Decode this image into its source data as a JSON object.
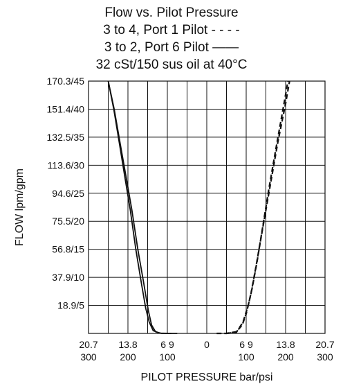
{
  "chart_data": {
    "type": "line",
    "title_lines": [
      "Flow vs. Pilot Pressure",
      "3 to 4, Port 1 Pilot - - - -",
      "3 to 2, Port 6 Pilot ——",
      "32 cSt/150 sus oil at 40°C"
    ],
    "xlabel": "PILOT PRESSURE bar/psi",
    "ylabel": "FLOW lpm/gpm",
    "grid": true,
    "x_unit": "psi",
    "y_unit": "gpm",
    "xlim": [
      -300,
      300
    ],
    "ylim": [
      0,
      45
    ],
    "x_gridlines": [
      -300,
      -250,
      -200,
      -150,
      -100,
      -50,
      0,
      50,
      100,
      150,
      200,
      250,
      300
    ],
    "y_ticks": [
      {
        "value": 5,
        "label": "18.9/5"
      },
      {
        "value": 10,
        "label": "37.9/10"
      },
      {
        "value": 15,
        "label": "56.8/15"
      },
      {
        "value": 20,
        "label": "75.5/20"
      },
      {
        "value": 25,
        "label": "94.6/25"
      },
      {
        "value": 30,
        "label": "113.6/30"
      },
      {
        "value": 35,
        "label": "132.5/35"
      },
      {
        "value": 40,
        "label": "151.4/40"
      },
      {
        "value": 45,
        "label": "170.3/45"
      }
    ],
    "x_ticks": [
      {
        "value": -300,
        "top": "20.7",
        "bottom": "300"
      },
      {
        "value": -200,
        "top": "13.8",
        "bottom": "200"
      },
      {
        "value": -100,
        "top": "6 9",
        "bottom": "100"
      },
      {
        "value": 0,
        "top": "0",
        "bottom": ""
      },
      {
        "value": 100,
        "top": "6 9",
        "bottom": "100"
      },
      {
        "value": 200,
        "top": "13.8",
        "bottom": "200"
      },
      {
        "value": 300,
        "top": "20.7",
        "bottom": "300"
      }
    ],
    "series": [
      {
        "style": "dashed",
        "points": [
          [
            25,
            0
          ],
          [
            50,
            0
          ],
          [
            75,
            0.3
          ],
          [
            90,
            1.5
          ],
          [
            100,
            3.5
          ],
          [
            112,
            7
          ],
          [
            125,
            12
          ],
          [
            140,
            18
          ],
          [
            160,
            26
          ],
          [
            180,
            34
          ],
          [
            200,
            41
          ],
          [
            210,
            45
          ]
        ]
      },
      {
        "style": "dashed",
        "points": [
          [
            50,
            0
          ],
          [
            75,
            0.2
          ],
          [
            92,
            2
          ],
          [
            105,
            5
          ],
          [
            115,
            8
          ],
          [
            128,
            13
          ],
          [
            142,
            19
          ],
          [
            158,
            26
          ],
          [
            178,
            34
          ],
          [
            196,
            41
          ],
          [
            206,
            45
          ]
        ]
      },
      {
        "style": "solid",
        "points": [
          [
            -250,
            45
          ],
          [
            -235,
            40
          ],
          [
            -220,
            34
          ],
          [
            -205,
            28
          ],
          [
            -190,
            22
          ],
          [
            -175,
            15
          ],
          [
            -160,
            9
          ],
          [
            -148,
            4
          ],
          [
            -140,
            1.5
          ],
          [
            -130,
            0.3
          ],
          [
            -115,
            0
          ],
          [
            -75,
            0
          ]
        ]
      },
      {
        "style": "solid",
        "points": [
          [
            -250,
            45
          ],
          [
            -236,
            40
          ],
          [
            -222,
            34
          ],
          [
            -208,
            28
          ],
          [
            -194,
            22
          ],
          [
            -180,
            15
          ],
          [
            -166,
            9
          ],
          [
            -155,
            4.5
          ],
          [
            -146,
            2
          ],
          [
            -136,
            0.5
          ],
          [
            -120,
            0.05
          ],
          [
            -90,
            0
          ]
        ]
      }
    ]
  }
}
